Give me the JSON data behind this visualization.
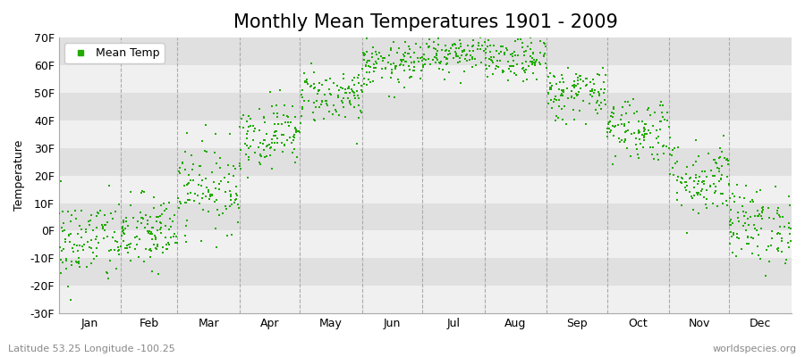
{
  "title": "Monthly Mean Temperatures 1901 - 2009",
  "ylabel": "Temperature",
  "xlabel_labels": [
    "Jan",
    "Feb",
    "Mar",
    "Apr",
    "May",
    "Jun",
    "Jul",
    "Aug",
    "Sep",
    "Oct",
    "Nov",
    "Dec"
  ],
  "ytick_labels": [
    "-30F",
    "-20F",
    "-10F",
    "0F",
    "10F",
    "20F",
    "30F",
    "40F",
    "50F",
    "60F",
    "70F"
  ],
  "ytick_values": [
    -30,
    -20,
    -10,
    0,
    10,
    20,
    30,
    40,
    50,
    60,
    70
  ],
  "ylim": [
    -30,
    70
  ],
  "dot_color": "#22aa00",
  "bg_color": "#ffffff",
  "plot_bg_color": "#e8e8e8",
  "band_color_light": "#f0f0f0",
  "band_color_dark": "#e0e0e0",
  "vline_color": "#aaaaaa",
  "legend_label": "Mean Temp",
  "footer_left": "Latitude 53.25 Longitude -100.25",
  "footer_right": "worldspecies.org",
  "title_fontsize": 15,
  "label_fontsize": 9,
  "footer_fontsize": 8,
  "monthly_means_F": [
    -4,
    -1,
    16,
    35,
    49,
    60,
    65,
    62,
    50,
    37,
    19,
    2
  ],
  "monthly_std_F": [
    8,
    7,
    8,
    6,
    5,
    4,
    4,
    4,
    5,
    6,
    7,
    7
  ],
  "n_years": 109,
  "marker_size": 3.5
}
